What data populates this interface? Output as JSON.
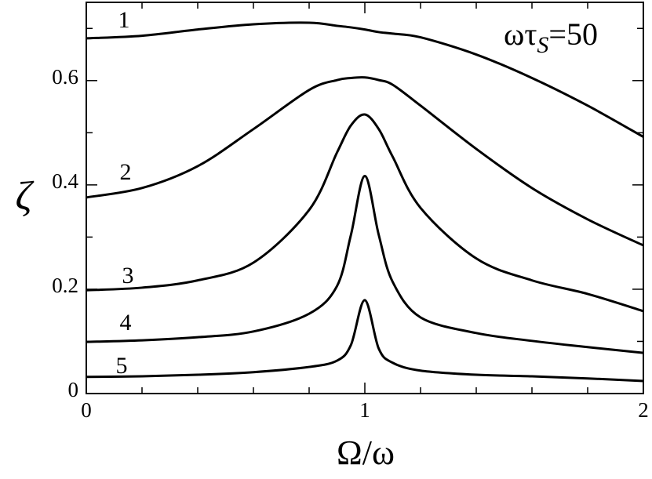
{
  "chart_data": {
    "type": "line",
    "x_label": "Ω/ω",
    "y_label": "ζ",
    "annotation": {
      "main": "ωτ",
      "sub": "S",
      "tail": "=50"
    },
    "x": [
      0,
      0.2,
      0.4,
      0.6,
      0.8,
      0.9,
      0.95,
      1,
      1.05,
      1.1,
      1.2,
      1.4,
      1.6,
      1.8,
      2
    ],
    "series": [
      {
        "name": "1",
        "color": "#000000",
        "values": [
          0.681,
          0.686,
          0.698,
          0.708,
          0.711,
          0.705,
          0.702,
          0.698,
          0.693,
          0.69,
          0.683,
          0.65,
          0.605,
          0.552,
          0.492
        ]
      },
      {
        "name": "2",
        "color": "#000000",
        "values": [
          0.376,
          0.394,
          0.436,
          0.507,
          0.582,
          0.601,
          0.605,
          0.606,
          0.601,
          0.592,
          0.552,
          0.469,
          0.394,
          0.334,
          0.284
        ]
      },
      {
        "name": "3",
        "color": "#000000",
        "values": [
          0.198,
          0.203,
          0.217,
          0.251,
          0.352,
          0.462,
          0.514,
          0.535,
          0.507,
          0.454,
          0.356,
          0.259,
          0.217,
          0.191,
          0.158
        ]
      },
      {
        "name": "4",
        "color": "#000000",
        "values": [
          0.099,
          0.102,
          0.108,
          0.119,
          0.153,
          0.206,
          0.304,
          0.417,
          0.304,
          0.214,
          0.146,
          0.116,
          0.101,
          0.089,
          0.078
        ]
      },
      {
        "name": "5",
        "color": "#000000",
        "values": [
          0.032,
          0.033,
          0.036,
          0.041,
          0.051,
          0.063,
          0.093,
          0.179,
          0.086,
          0.059,
          0.044,
          0.036,
          0.033,
          0.029,
          0.024
        ]
      }
    ],
    "xlim": [
      0,
      2
    ],
    "xticks": [
      0,
      1,
      2
    ],
    "xminorticks": [
      0.2,
      0.4,
      0.6,
      0.8,
      1.2,
      1.4,
      1.6,
      1.8
    ],
    "ylim": [
      0,
      0.75
    ],
    "yticks": [
      0,
      0.2,
      0.4,
      0.6
    ],
    "yminorticks": [
      0.1,
      0.3,
      0.5,
      0.7
    ]
  }
}
